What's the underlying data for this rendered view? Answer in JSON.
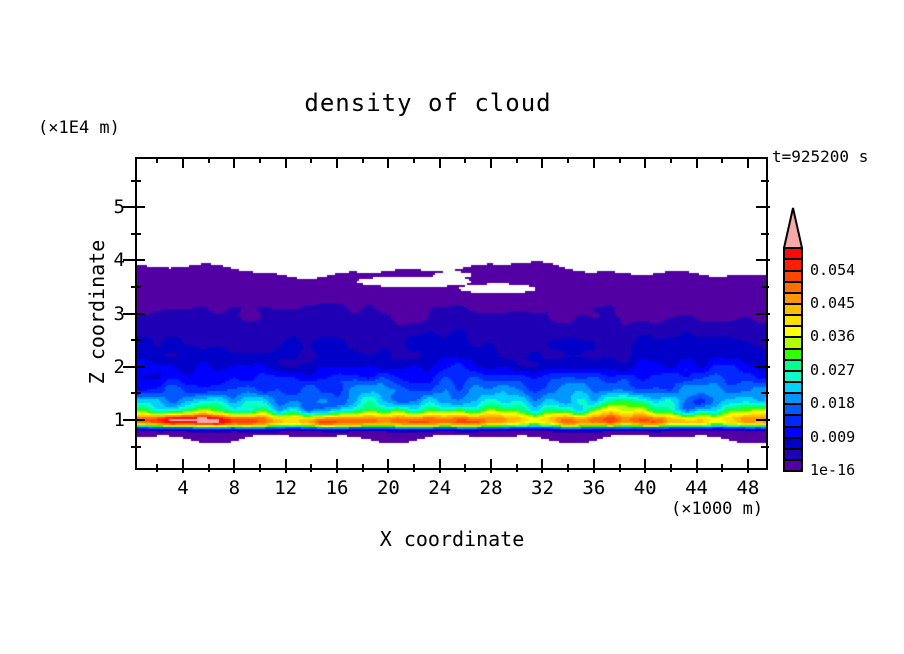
{
  "title": "density of cloud",
  "time_label": "t=925200 s",
  "x_axis": {
    "title": "X coordinate",
    "unit": "(×1000 m)",
    "tick_labels": [
      "4",
      "8",
      "12",
      "16",
      "20",
      "24",
      "28",
      "32",
      "36",
      "40",
      "44",
      "48"
    ],
    "major_ticks": [
      4,
      8,
      12,
      16,
      20,
      24,
      28,
      32,
      36,
      40,
      44,
      48
    ],
    "minor_ticks": [
      2,
      6,
      10,
      14,
      18,
      22,
      26,
      30,
      34,
      38,
      42,
      46
    ]
  },
  "y_axis": {
    "title": "Z coordinate",
    "unit": "(×1E4 m)",
    "tick_labels": [
      "1",
      "2",
      "3",
      "4",
      "5"
    ],
    "major_ticks": [
      1,
      2,
      3,
      4,
      5
    ],
    "minor_ticks": [
      0.5,
      1.5,
      2.5,
      3.5,
      4.5,
      5.5
    ]
  },
  "colorbar": {
    "overflow_color": "#f7a8a8",
    "labels": [
      {
        "text": "0.054",
        "boundary": 18
      },
      {
        "text": "0.045",
        "boundary": 15
      },
      {
        "text": "0.036",
        "boundary": 12
      },
      {
        "text": "0.027",
        "boundary": 9
      },
      {
        "text": "0.018",
        "boundary": 6
      },
      {
        "text": "0.009",
        "boundary": 3
      },
      {
        "text": "1e-16",
        "boundary": 0
      }
    ]
  },
  "chart_data": {
    "type": "filled_contour",
    "variable": "density of cloud",
    "time": "t=925200 s",
    "xlabel": "X coordinate",
    "x_unit": "(×1000 m)",
    "ylabel": "Z coordinate",
    "y_unit": "(×1E4 m)",
    "x_range": [
      0.25,
      49.6
    ],
    "z_range": [
      0.06,
      5.94
    ],
    "x_major_ticks": [
      4,
      8,
      12,
      16,
      20,
      24,
      28,
      32,
      36,
      40,
      44,
      48
    ],
    "z_major_ticks": [
      1,
      2,
      3,
      4,
      5
    ],
    "contour_interval": 0.003,
    "min_level": 1e-16,
    "overflow_level": 0.06,
    "labeled_levels": [
      "1e-16",
      "0.009",
      "0.018",
      "0.027",
      "0.036",
      "0.045",
      "0.054"
    ],
    "palette": [
      "#5200a3",
      "#2000b4",
      "#0000c8",
      "#0000ff",
      "#0028ff",
      "#005aff",
      "#0096ff",
      "#00d2ff",
      "#0affc8",
      "#00ff8c",
      "#30ff00",
      "#b4ff00",
      "#ffff00",
      "#ffe100",
      "#ffbe00",
      "#ff9600",
      "#ff6e00",
      "#ff4600",
      "#ff1e00",
      "#fa0a0a"
    ],
    "overflow_color": "#f7a8a8",
    "background": "#ffffff",
    "description": "Horizontally stratified cloud layer. Cloud top (lowest contour 1e-16) wavy near z≈3.85 (×1E4 m) with white gaps embedded near x≈18-31 at z≈3.5-3.7. Density increases downward: purple band z≈2.9-3.85, navy z≈2.2-2.9, blues z≈1.6-2.2, cyan z≈1.35-1.6, green z≈1.15-1.35, yellow/orange/red peak layer at z≈0.9-1.1 (0.04-0.06), pink overflow patch (>0.06) at x≈0.5-7 z≈1.0, thin purple cloud-base strip z≈0.62-0.78 with white gaps, white below.",
    "render_model": {
      "mean_profile": [
        [
          0.5,
          0
        ],
        [
          0.56,
          0.0009
        ],
        [
          0.62,
          0.0012
        ],
        [
          0.74,
          0.0013
        ],
        [
          0.78,
          0.003
        ],
        [
          0.81,
          0.006
        ],
        [
          0.845,
          0.014
        ],
        [
          0.88,
          0.028
        ],
        [
          0.92,
          0.041
        ],
        [
          0.97,
          0.047
        ],
        [
          1.03,
          0.0455
        ],
        [
          1.1,
          0.036
        ],
        [
          1.18,
          0.028
        ],
        [
          1.28,
          0.0235
        ],
        [
          1.4,
          0.02
        ],
        [
          1.52,
          0.0168
        ],
        [
          1.66,
          0.0142
        ],
        [
          1.82,
          0.0118
        ],
        [
          2.0,
          0.0095
        ],
        [
          2.2,
          0.0072
        ],
        [
          2.45,
          0.0054
        ],
        [
          2.7,
          0.0043
        ],
        [
          3.0,
          0.0029
        ],
        [
          3.3,
          0.0019
        ],
        [
          3.6,
          0.0013
        ],
        [
          3.82,
          0.0009
        ],
        [
          3.98,
          0.0006
        ]
      ],
      "noise": {
        "scales": [
          [
            0.32,
            2.4,
            0.6,
            0,
            0
          ],
          [
            0.85,
            4.6,
            0.4,
            11.3,
            5.7
          ]
        ],
        "base_amp": 0.5,
        "peak_damp": 0.24,
        "peak_z": 0.98,
        "peak_sigma": 0.17
      },
      "top_boundary": {
        "base": 3.82,
        "waves": [
          [
            0.22,
            1.4,
            0.1
          ],
          [
            0.53,
            4.2,
            0.05
          ],
          [
            1.2,
            0.7,
            0.03
          ]
        ]
      },
      "bottom_boundary": {
        "base": 0.66,
        "waves": [
          [
            0.45,
            2.0,
            0.06
          ],
          [
            0.9,
            5.0,
            0.05
          ]
        ]
      },
      "holes": [
        {
          "x": 22.0,
          "z": 3.6,
          "rx": 4.5,
          "rz": 0.1
        },
        {
          "x": 28.5,
          "z": 3.47,
          "rx": 3.0,
          "rz": 0.09
        },
        {
          "x": 25.0,
          "z": 3.72,
          "rx": 1.5,
          "rz": 0.07
        }
      ],
      "max_patch": {
        "x": 3.8,
        "z": 1.0,
        "rx": 3.4,
        "rz": 0.105,
        "add": 0.016
      }
    }
  }
}
